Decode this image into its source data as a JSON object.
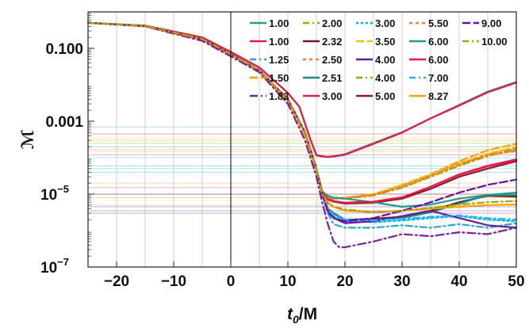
{
  "chart_data": {
    "type": "line",
    "xlabel_main": "t",
    "xlabel_sub": "0",
    "xlabel_rest": "/M",
    "ylabel": "ℳ",
    "xlim": [
      -25,
      50
    ],
    "ylim": [
      1e-07,
      1
    ],
    "yscale": "log",
    "grid": "vertical lines at every 5 units",
    "x_ticks": [
      {
        "v": -20,
        "label": "−20"
      },
      {
        "v": -10,
        "label": "−10"
      },
      {
        "v": 0,
        "label": "0"
      },
      {
        "v": 10,
        "label": "10"
      },
      {
        "v": 20,
        "label": "20"
      },
      {
        "v": 30,
        "label": "30"
      },
      {
        "v": 40,
        "label": "40"
      },
      {
        "v": 50,
        "label": "50"
      }
    ],
    "y_ticks": [
      {
        "v": 0.1,
        "base": "0.100"
      },
      {
        "v": 0.001,
        "base": "0.001"
      },
      {
        "v": 1e-05,
        "base": "10",
        "exp": "−5"
      },
      {
        "v": 1e-07,
        "base": "10",
        "exp": "−7"
      }
    ],
    "legend_position": "top-right",
    "series": [
      {
        "name": "1.00",
        "color": "#2a9d8f",
        "dash": "",
        "hline": 0.0007,
        "x": [
          -25,
          -15,
          -5,
          0,
          5,
          10,
          12,
          14,
          15,
          16,
          17,
          18,
          20,
          25,
          30,
          35,
          40,
          45,
          50
        ],
        "y": [
          0.5,
          0.42,
          0.2,
          0.08,
          0.03,
          0.006,
          0.0025,
          0.0003,
          0.00012,
          0.00011,
          0.000105,
          0.00011,
          0.000125,
          0.00025,
          0.0005,
          0.0012,
          0.0028,
          0.0065,
          0.012
        ]
      },
      {
        "name": "1.00",
        "color": "#e6194b",
        "dash": "",
        "hline": 0.00045,
        "x": [
          -25,
          -15,
          -5,
          0,
          5,
          10,
          12,
          14,
          15,
          16,
          17,
          18,
          20,
          25,
          30,
          35,
          40,
          45,
          50
        ],
        "y": [
          0.5,
          0.42,
          0.2,
          0.08,
          0.03,
          0.006,
          0.0025,
          0.0003,
          0.000115,
          0.000108,
          0.000104,
          0.000108,
          0.00012,
          0.00024,
          0.00049,
          0.0012,
          0.0027,
          0.0062,
          0.0115
        ]
      },
      {
        "name": "1.25",
        "color": "#1ea7e1",
        "dash": "8 4 2 4",
        "hline": 5e-05,
        "x": [
          -25,
          -15,
          -5,
          0,
          5,
          10,
          13,
          15,
          16,
          17,
          18,
          20,
          25,
          30,
          35,
          40,
          45,
          50
        ],
        "y": [
          0.5,
          0.4,
          0.18,
          0.07,
          0.025,
          0.004,
          0.0005,
          5e-05,
          1e-05,
          3e-06,
          1.5e-06,
          1.2e-06,
          1.2e-06,
          1.4e-06,
          1.2e-06,
          1.5e-06,
          1.2e-06,
          1.6e-06
        ]
      },
      {
        "name": "1.50",
        "color": "#f5a000",
        "dash": "10 4",
        "hline": 2e-05,
        "x": [
          -25,
          -15,
          -5,
          0,
          5,
          10,
          13,
          15,
          16,
          17,
          18,
          20,
          25,
          30,
          35,
          40,
          45,
          50
        ],
        "y": [
          0.5,
          0.4,
          0.17,
          0.065,
          0.024,
          0.0035,
          0.0004,
          4e-05,
          1.2e-05,
          8.5e-06,
          7.5e-06,
          8e-06,
          1e-05,
          1.8e-05,
          3.5e-05,
          8e-05,
          0.00016,
          0.00024
        ]
      },
      {
        "name": "1.83",
        "color": "#7b1fa2",
        "dash": "10 4 2 4",
        "hline": 3e-06,
        "x": [
          -25,
          -15,
          -5,
          0,
          5,
          10,
          13,
          15,
          16,
          17,
          18,
          19,
          20,
          25,
          30,
          35,
          40,
          45,
          50
        ],
        "y": [
          0.5,
          0.4,
          0.16,
          0.06,
          0.022,
          0.003,
          0.0003,
          3e-05,
          6e-06,
          1.5e-06,
          5e-07,
          3.5e-07,
          3.5e-07,
          5e-07,
          8e-07,
          7e-07,
          9e-07,
          8e-07,
          1.2e-06
        ]
      },
      {
        "name": "2.00",
        "color": "#b5a000",
        "dash": "8 4 2 4",
        "hline": 0.0003,
        "x": [
          -25,
          -15,
          -5,
          0,
          5,
          10,
          13,
          15,
          16,
          17,
          18,
          20,
          25,
          30,
          35,
          40,
          45,
          50
        ],
        "y": [
          0.5,
          0.41,
          0.18,
          0.07,
          0.025,
          0.004,
          0.0005,
          5e-05,
          1e-05,
          8e-06,
          7.5e-06,
          7.8e-06,
          9.5e-06,
          1.5e-05,
          3e-05,
          6e-05,
          0.00012,
          0.00018
        ]
      },
      {
        "name": "2.32",
        "color": "#7a1030",
        "dash": "",
        "hline": 1e-05,
        "x": [
          -25,
          -15,
          -5,
          0,
          5,
          10,
          13,
          15,
          16,
          17,
          18,
          20,
          25,
          30,
          35,
          40,
          45,
          50
        ],
        "y": [
          0.5,
          0.41,
          0.18,
          0.07,
          0.025,
          0.004,
          0.0005,
          5e-05,
          1e-05,
          4e-06,
          3e-06,
          2e-06,
          2.1e-06,
          2.4e-06,
          3.5e-06,
          6e-06,
          9e-06,
          8.5e-06
        ]
      },
      {
        "name": "2.50",
        "color": "#f58231",
        "dash": "4 4",
        "hline": 0.00015,
        "x": [
          -25,
          -15,
          -5,
          0,
          5,
          10,
          13,
          15,
          16,
          17,
          18,
          20,
          25,
          30,
          35,
          40,
          45,
          50
        ],
        "y": [
          0.5,
          0.41,
          0.18,
          0.07,
          0.025,
          0.004,
          0.0005,
          5e-05,
          1e-05,
          8.5e-06,
          8e-06,
          8e-06,
          9.8e-06,
          1.6e-05,
          3.2e-05,
          7e-05,
          0.00012,
          0.00015
        ]
      },
      {
        "name": "2.51",
        "color": "#1b8a7a",
        "dash": "",
        "hline": 0.0002,
        "x": [
          -25,
          -15,
          -5,
          0,
          5,
          10,
          13,
          15,
          16,
          17,
          18,
          20,
          25,
          30,
          35,
          40,
          45,
          50
        ],
        "y": [
          0.5,
          0.41,
          0.18,
          0.07,
          0.025,
          0.004,
          0.0005,
          5e-05,
          1e-05,
          4e-06,
          3e-06,
          2e-06,
          1.9e-06,
          2.2e-06,
          3.2e-06,
          5.5e-06,
          9.5e-06,
          9.2e-06
        ]
      },
      {
        "name": "3.00",
        "color": "#e6194b",
        "dash": "",
        "hline": 1.5e-05,
        "x": [
          -25,
          -15,
          -5,
          0,
          5,
          10,
          13,
          15,
          16,
          17,
          18,
          20,
          25,
          30,
          35,
          40,
          45,
          50
        ],
        "y": [
          0.5,
          0.41,
          0.18,
          0.07,
          0.025,
          0.004,
          0.0005,
          5e-05,
          1.2e-05,
          7.5e-06,
          6.5e-06,
          5.8e-06,
          6.2e-06,
          8e-06,
          1.6e-05,
          3.5e-05,
          6e-05,
          9e-05
        ]
      },
      {
        "name": "3.00",
        "color": "#00b2e6",
        "dash": "3 3",
        "hline": 0.0001,
        "x": [
          -25,
          -15,
          -5,
          0,
          5,
          10,
          13,
          15,
          16,
          17,
          18,
          20,
          25,
          30,
          35,
          40,
          45,
          50
        ],
        "y": [
          0.5,
          0.41,
          0.18,
          0.07,
          0.025,
          0.004,
          0.0005,
          5e-05,
          1e-05,
          3.5e-06,
          2.5e-06,
          1.8e-06,
          1.7e-06,
          1.9e-06,
          2.2e-06,
          2.5e-06,
          2e-06,
          1.8e-06
        ]
      },
      {
        "name": "3.50",
        "color": "#f5c000",
        "dash": "10 4",
        "hline": 0.00035,
        "x": [
          -25,
          -15,
          -5,
          0,
          5,
          10,
          13,
          15,
          16,
          17,
          18,
          20,
          25,
          30,
          35,
          40,
          45,
          50
        ],
        "y": [
          0.5,
          0.41,
          0.18,
          0.07,
          0.025,
          0.004,
          0.0005,
          5e-05,
          1e-05,
          8.5e-06,
          8e-06,
          8e-06,
          1e-05,
          1.7e-05,
          3.4e-05,
          7e-05,
          0.00013,
          0.0002
        ]
      },
      {
        "name": "4.00",
        "color": "#6a1b9a",
        "dash": "",
        "hline": 4.5e-06,
        "x": [
          -25,
          -15,
          -5,
          0,
          5,
          10,
          13,
          15,
          16,
          17,
          18,
          20,
          25,
          30,
          35,
          40,
          45,
          50
        ],
        "y": [
          0.5,
          0.41,
          0.18,
          0.07,
          0.025,
          0.004,
          0.0005,
          5e-05,
          1e-05,
          3.5e-06,
          2.2e-06,
          1.6e-06,
          1.8e-06,
          2.5e-06,
          3.5e-06,
          2.2e-06,
          1.4e-06,
          1.2e-06
        ]
      },
      {
        "name": "4.00",
        "color": "#a6a600",
        "dash": "8 4 2 4",
        "hline": 0.00025,
        "x": [
          -25,
          -15,
          -5,
          0,
          5,
          10,
          13,
          15,
          16,
          17,
          18,
          20,
          25,
          30,
          35,
          40,
          45,
          50
        ],
        "y": [
          0.5,
          0.41,
          0.18,
          0.07,
          0.025,
          0.004,
          0.0005,
          5e-05,
          1e-05,
          8e-06,
          7.5e-06,
          7.5e-06,
          9.2e-06,
          1.5e-05,
          3e-05,
          6e-05,
          0.00011,
          0.00017
        ]
      },
      {
        "name": "5.00",
        "color": "#8b1a2b",
        "dash": "",
        "hline": 1e-05,
        "x": [
          -25,
          -15,
          -5,
          0,
          5,
          10,
          13,
          15,
          16,
          17,
          18,
          20,
          25,
          30,
          35,
          40,
          45,
          50
        ],
        "y": [
          0.5,
          0.41,
          0.18,
          0.07,
          0.025,
          0.004,
          0.0005,
          5e-05,
          1.1e-05,
          7e-06,
          6.2e-06,
          5.5e-06,
          5.8e-06,
          7.5e-06,
          1.4e-05,
          3e-05,
          5e-05,
          8e-05
        ]
      },
      {
        "name": "5.50",
        "color": "#f47a42",
        "dash": "4 4",
        "hline": 0.00017,
        "x": [
          -25,
          -15,
          -5,
          0,
          5,
          10,
          13,
          15,
          16,
          17,
          18,
          20,
          25,
          30,
          35,
          40,
          45,
          50
        ],
        "y": [
          0.5,
          0.41,
          0.18,
          0.07,
          0.025,
          0.004,
          0.0005,
          5e-05,
          1e-05,
          8e-06,
          7.8e-06,
          7.8e-06,
          9.6e-06,
          1.6e-05,
          3.2e-05,
          6.5e-05,
          0.00012,
          0.00016
        ]
      },
      {
        "name": "6.00",
        "color": "#1a9e8c",
        "dash": "",
        "hline": 6e-05,
        "x": [
          -25,
          -15,
          -5,
          0,
          5,
          10,
          13,
          15,
          16,
          17,
          18,
          20,
          25,
          30,
          35,
          40,
          45,
          50
        ],
        "y": [
          0.5,
          0.41,
          0.18,
          0.07,
          0.025,
          0.004,
          0.0005,
          5e-05,
          1.2e-05,
          9e-06,
          8e-06,
          7.5e-06,
          6e-06,
          4.5e-06,
          5.2e-06,
          7.5e-06,
          9.5e-06,
          1.1e-05
        ]
      },
      {
        "name": "6.00",
        "color": "#e8194f",
        "dash": "",
        "hline": 0.00012,
        "x": [
          -25,
          -15,
          -5,
          0,
          5,
          10,
          13,
          15,
          16,
          17,
          18,
          20,
          25,
          30,
          35,
          40,
          45,
          50
        ],
        "y": [
          0.5,
          0.41,
          0.18,
          0.07,
          0.025,
          0.004,
          0.0005,
          5e-05,
          1.1e-05,
          7.2e-06,
          6.4e-06,
          5.8e-06,
          6.2e-06,
          8.2e-06,
          1.6e-05,
          3.4e-05,
          5.8e-05,
          8.5e-05
        ]
      },
      {
        "name": "7.00",
        "color": "#29b6f6",
        "dash": "8 4 2 4",
        "hline": 4e-05,
        "x": [
          -25,
          -15,
          -5,
          0,
          5,
          10,
          13,
          15,
          16,
          17,
          18,
          20,
          25,
          30,
          35,
          40,
          45,
          50
        ],
        "y": [
          0.5,
          0.41,
          0.18,
          0.07,
          0.025,
          0.004,
          0.0005,
          5e-05,
          1e-05,
          3.8e-06,
          2.7e-06,
          2e-06,
          1.9e-06,
          2.1e-06,
          2.4e-06,
          2.6e-06,
          2.2e-06,
          2e-06
        ]
      },
      {
        "name": "8.27",
        "color": "#f4a400",
        "dash": "",
        "hline": 8e-06,
        "x": [
          -25,
          -15,
          -5,
          0,
          5,
          10,
          13,
          15,
          16,
          17,
          18,
          20,
          25,
          30,
          35,
          40,
          45,
          50
        ],
        "y": [
          0.5,
          0.41,
          0.18,
          0.07,
          0.025,
          0.004,
          0.0005,
          5e-05,
          1e-05,
          6e-06,
          4.5e-06,
          3.5e-06,
          3.2e-06,
          3.5e-06,
          4e-06,
          4.5e-06,
          5e-06,
          5.2e-06
        ]
      },
      {
        "name": "9.00",
        "color": "#6a0dad",
        "dash": "10 4",
        "hline": 3.5e-06,
        "x": [
          -25,
          -15,
          -5,
          0,
          5,
          10,
          13,
          15,
          16,
          17,
          18,
          20,
          25,
          30,
          35,
          40,
          45,
          50
        ],
        "y": [
          0.5,
          0.41,
          0.18,
          0.07,
          0.025,
          0.004,
          0.0005,
          5e-05,
          1e-05,
          3.2e-06,
          2.2e-06,
          1.8e-06,
          2.2e-06,
          3.5e-06,
          6e-06,
          1.1e-05,
          1.8e-05,
          2.5e-05
        ]
      },
      {
        "name": "10.00",
        "color": "#b3a000",
        "dash": "8 4 2 4",
        "hline": 5e-06,
        "x": [
          -25,
          -15,
          -5,
          0,
          5,
          10,
          13,
          15,
          16,
          17,
          18,
          20,
          25,
          30,
          35,
          40,
          45,
          50
        ],
        "y": [
          0.5,
          0.41,
          0.18,
          0.07,
          0.025,
          0.004,
          0.0005,
          5e-05,
          1e-05,
          5.5e-06,
          4.5e-06,
          3.8e-06,
          3.2e-06,
          3.5e-06,
          4.2e-06,
          5.2e-06,
          6e-06,
          6.5e-06
        ]
      }
    ]
  }
}
